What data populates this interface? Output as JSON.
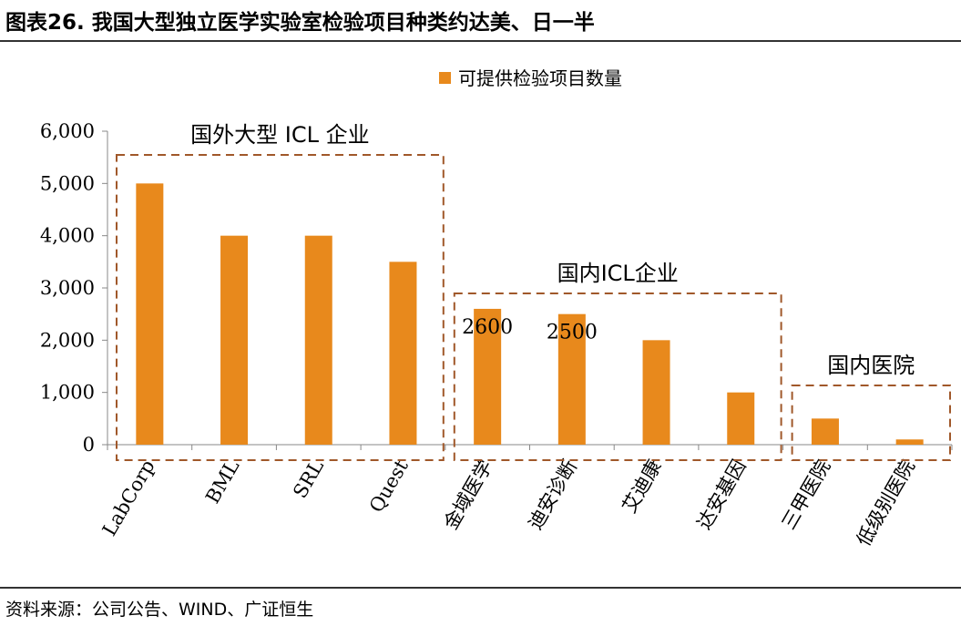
{
  "header": {
    "title": "图表26.  我国大型独立医学实验室检验项目种类约达美、日一半"
  },
  "footer": {
    "source": "资料来源：公司公告、WIND、广证恒生"
  },
  "chart_data": {
    "type": "bar",
    "categories": [
      "LabCorp",
      "BML",
      "SRL",
      "Quest",
      "金域医学",
      "迪安诊断",
      "艾迪康",
      "达安基因",
      "三甲医院",
      "低级别医院"
    ],
    "series": [
      {
        "name": "可提供检验项目数量",
        "values": [
          5000,
          4000,
          4000,
          3500,
          2600,
          2500,
          2000,
          1000,
          500,
          100
        ]
      }
    ],
    "ylim": [
      0,
      6000
    ],
    "yticks": [
      "0",
      "1,000",
      "2,000",
      "3,000",
      "4,000",
      "5,000",
      "6,000"
    ],
    "ytick_values": [
      0,
      1000,
      2000,
      3000,
      4000,
      5000,
      6000
    ],
    "data_labels": [
      {
        "category": "金域医学",
        "text": "2600"
      },
      {
        "category": "迪安诊断",
        "text": "2500"
      }
    ],
    "groups": [
      {
        "label": "国外大型 ICL 企业",
        "from": 0,
        "to": 3
      },
      {
        "label": "国内ICL企业",
        "from": 4,
        "to": 7
      },
      {
        "label": "国内医院",
        "from": 8,
        "to": 9
      }
    ],
    "legend_position": "top",
    "bar_color": "#E8891C",
    "group_box_color": "#A0582A",
    "grid": false
  }
}
